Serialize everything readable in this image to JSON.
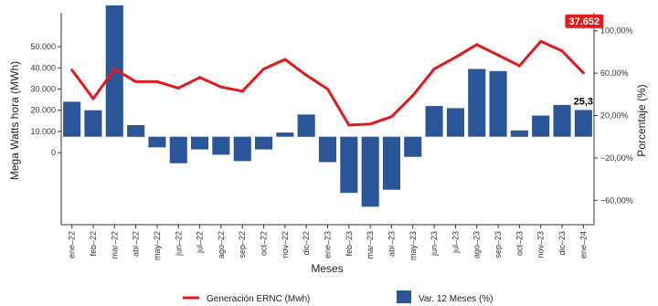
{
  "chart_data": {
    "type": "bar",
    "categories": [
      "ene–22",
      "feb–22",
      "mar–22",
      "abr–22",
      "may–22",
      "jun–22",
      "jul–22",
      "ago–22",
      "sep–22",
      "oct–22",
      "nov–22",
      "dic–22",
      "ene–23",
      "feb–23",
      "mar–23",
      "abr–23",
      "may–23",
      "jun–23",
      "jul–23",
      "ago–23",
      "sep–23",
      "oct–23",
      "nov–23",
      "dic–23",
      "ene–24"
    ],
    "xlabel": "Meses",
    "ylabel_left": "Mega Watts hora (MWh)",
    "ylabel_right": "Porcentaje (%)",
    "left_axis": {
      "ticks": [
        0,
        10000,
        20000,
        30000,
        40000,
        50000
      ],
      "tick_labels": [
        "0",
        "10.000",
        "20.000",
        "30.000",
        "40.000",
        "50.000"
      ],
      "range": [
        -34000,
        66000
      ]
    },
    "right_axis": {
      "ticks": [
        -60,
        -20,
        20,
        60,
        100
      ],
      "tick_labels": [
        "−60,00%",
        "−20,00%",
        "20,00%",
        "60,00%",
        "100,00%"
      ],
      "range": [
        -83,
        117
      ]
    },
    "series": [
      {
        "name": "Generación ERNC (Mwh)",
        "kind": "line",
        "axis": "left",
        "color": "#e31a1c",
        "values": [
          39000,
          25500,
          39500,
          33500,
          33500,
          30500,
          35500,
          31000,
          29000,
          39500,
          44000,
          36500,
          30000,
          13000,
          13500,
          17000,
          27000,
          39500,
          45000,
          51000,
          46000,
          41000,
          52500,
          48000,
          37652
        ]
      },
      {
        "name": "Var. 12 Meses (%)",
        "kind": "bar",
        "axis": "right",
        "color": "#2a5599",
        "values": [
          33,
          25,
          124,
          11,
          -10,
          -25,
          -12,
          -17,
          -23,
          -12,
          4,
          21,
          -24,
          -53,
          -66,
          -50,
          -19,
          29,
          27,
          64,
          62,
          6,
          20,
          30,
          25.3
        ]
      }
    ],
    "annotations": [
      {
        "series": "Var. 12 Meses (%)",
        "category": "ene–24",
        "text": "25,3"
      },
      {
        "series": "Generación ERNC (Mwh)",
        "category": "ene–24",
        "text": "37.652",
        "style": "red-label"
      }
    ],
    "legend_position": "bottom",
    "grid": false
  }
}
